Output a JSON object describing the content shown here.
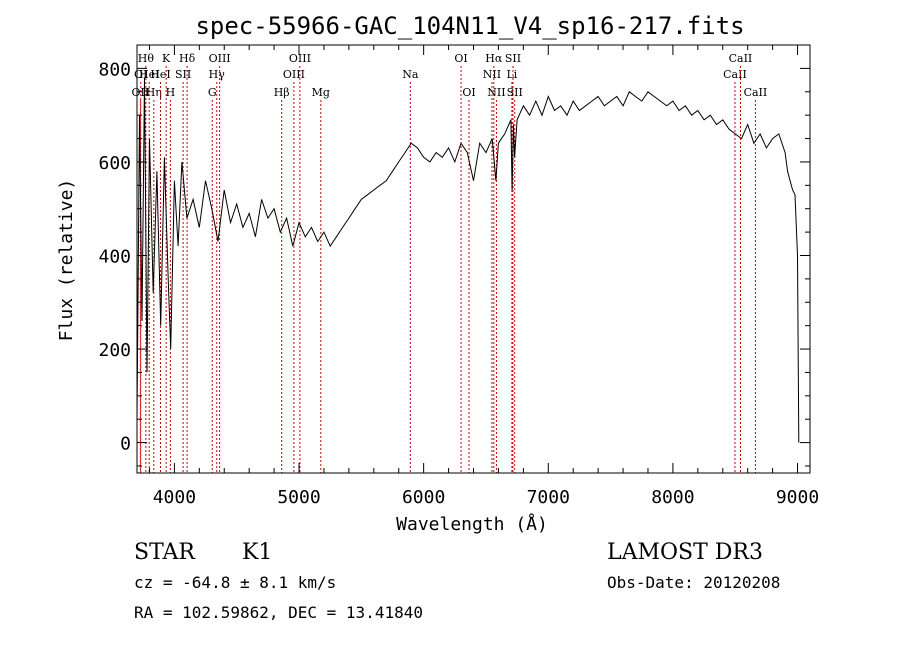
{
  "chart_data": {
    "type": "line",
    "title": "spec-55966-GAC_104N11_V4_sp16-217.fits",
    "xlabel": "Wavelength (Å)",
    "ylabel": "Flux (relative)",
    "xlim": [
      3700,
      9100
    ],
    "ylim": [
      -65,
      850
    ],
    "xticks": [
      4000,
      5000,
      6000,
      7000,
      8000,
      9000
    ],
    "yticks": [
      0,
      200,
      400,
      600,
      800
    ],
    "grid": false,
    "line_color": "#000000",
    "marker_color": "#cc0000",
    "series": [
      {
        "x": [
          3700,
          3720,
          3740,
          3760,
          3780,
          3800,
          3830,
          3860,
          3890,
          3920,
          3950,
          3970,
          4000,
          4030,
          4060,
          4100,
          4150,
          4200,
          4250,
          4300,
          4350,
          4400,
          4450,
          4500,
          4550,
          4600,
          4650,
          4700,
          4750,
          4800,
          4850,
          4900,
          4950,
          5000,
          5050,
          5100,
          5150,
          5200,
          5250,
          5300,
          5350,
          5400,
          5450,
          5500,
          5550,
          5600,
          5650,
          5700,
          5750,
          5800,
          5850,
          5900,
          5950,
          6000,
          6050,
          6100,
          6150,
          6200,
          6250,
          6300,
          6350,
          6400,
          6450,
          6500,
          6550,
          6580,
          6600,
          6650,
          6700,
          6710,
          6720,
          6730,
          6750,
          6800,
          6850,
          6900,
          6950,
          7000,
          7050,
          7100,
          7150,
          7200,
          7250,
          7300,
          7350,
          7400,
          7450,
          7500,
          7550,
          7600,
          7650,
          7700,
          7750,
          7800,
          7850,
          7900,
          7950,
          8000,
          8050,
          8100,
          8150,
          8200,
          8250,
          8300,
          8350,
          8400,
          8450,
          8500,
          8550,
          8600,
          8650,
          8700,
          8750,
          8800,
          8850,
          8900,
          8920,
          8940,
          8960,
          8980,
          9000,
          9010
        ],
        "values": [
          50,
          700,
          260,
          780,
          150,
          650,
          320,
          580,
          250,
          610,
          350,
          200,
          560,
          420,
          600,
          480,
          520,
          460,
          560,
          500,
          430,
          540,
          470,
          510,
          460,
          490,
          440,
          520,
          480,
          500,
          450,
          480,
          420,
          470,
          440,
          460,
          430,
          450,
          420,
          440,
          460,
          480,
          500,
          520,
          530,
          540,
          550,
          560,
          580,
          600,
          620,
          640,
          630,
          610,
          600,
          620,
          610,
          630,
          600,
          640,
          620,
          560,
          640,
          620,
          650,
          560,
          640,
          660,
          690,
          540,
          680,
          610,
          690,
          720,
          700,
          730,
          700,
          740,
          710,
          720,
          700,
          730,
          710,
          720,
          730,
          740,
          720,
          730,
          740,
          720,
          750,
          740,
          730,
          750,
          740,
          730,
          720,
          730,
          710,
          720,
          700,
          710,
          690,
          700,
          680,
          690,
          670,
          660,
          650,
          680,
          640,
          660,
          630,
          650,
          660,
          620,
          580,
          560,
          540,
          530,
          400,
          0
        ]
      }
    ],
    "line_markers": [
      {
        "wavelength": 3727,
        "label": "OII",
        "row": 3
      },
      {
        "wavelength": 3730,
        "label": "OI",
        "row": 2
      },
      {
        "wavelength": 3771,
        "label": "Hθ",
        "row": 1
      },
      {
        "wavelength": 3798,
        "label": "HeI",
        "row": 2
      },
      {
        "wavelength": 3835,
        "label": "Hη",
        "row": 3
      },
      {
        "wavelength": 3889,
        "label": "HeI",
        "row": 2
      },
      {
        "wavelength": 3934,
        "label": "K",
        "row": 1
      },
      {
        "wavelength": 3968,
        "label": "H",
        "row": 3
      },
      {
        "wavelength": 4070,
        "label": "SII",
        "row": 2
      },
      {
        "wavelength": 4102,
        "label": "Hδ",
        "row": 1
      },
      {
        "wavelength": 4304,
        "label": "G",
        "row": 3
      },
      {
        "wavelength": 4340,
        "label": "Hγ",
        "row": 2
      },
      {
        "wavelength": 4363,
        "label": "OIII",
        "row": 1
      },
      {
        "wavelength": 4861,
        "label": "Hβ",
        "row": 3
      },
      {
        "wavelength": 4959,
        "label": "OIII",
        "row": 2
      },
      {
        "wavelength": 5007,
        "label": "OIII",
        "row": 1
      },
      {
        "wavelength": 5175,
        "label": "Mg",
        "row": 3
      },
      {
        "wavelength": 5893,
        "label": "Na",
        "row": 2
      },
      {
        "wavelength": 6300,
        "label": "OI",
        "row": 1
      },
      {
        "wavelength": 6364,
        "label": "OI",
        "row": 3
      },
      {
        "wavelength": 6548,
        "label": "NII",
        "row": 2
      },
      {
        "wavelength": 6563,
        "label": "Hα",
        "row": 1
      },
      {
        "wavelength": 6584,
        "label": "NII",
        "row": 3
      },
      {
        "wavelength": 6708,
        "label": "Li",
        "row": 2
      },
      {
        "wavelength": 6717,
        "label": "SII",
        "row": 1
      },
      {
        "wavelength": 6731,
        "label": "SII",
        "row": 3
      },
      {
        "wavelength": 8498,
        "label": "CaII",
        "row": 2
      },
      {
        "wavelength": 8542,
        "label": "CaII",
        "row": 1
      },
      {
        "wavelength": 8662,
        "label": "CaII",
        "row": 3
      }
    ]
  },
  "info": {
    "object_type": "STAR",
    "subclass": "K1",
    "survey": "LAMOST DR3",
    "cz": "cz = -64.8 ± 8.1 km/s",
    "obs_date": "Obs-Date: 20120208",
    "coords": "RA = 102.59862, DEC =  13.41840"
  }
}
